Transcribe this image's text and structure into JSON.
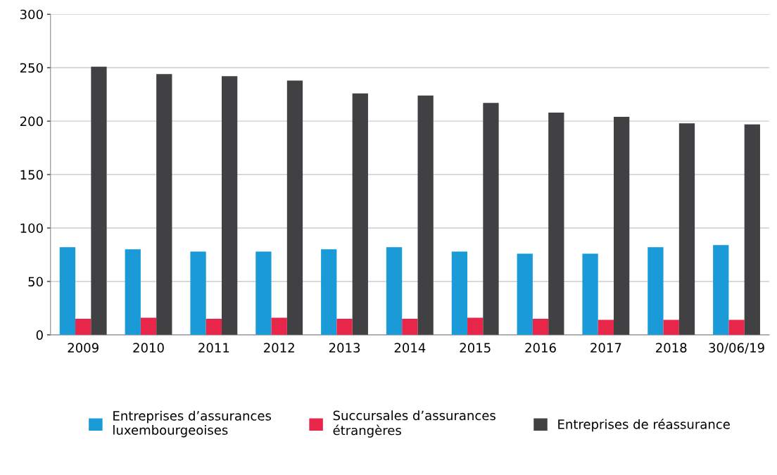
{
  "chart_data": {
    "type": "bar",
    "categories": [
      "2009",
      "2010",
      "2011",
      "2012",
      "2013",
      "2014",
      "2015",
      "2016",
      "2017",
      "2018",
      "30/06/19"
    ],
    "series": [
      {
        "name": "Entreprises d’assurances\nluxembourgeoises",
        "color": "#1a9bd7",
        "values": [
          82,
          80,
          78,
          78,
          80,
          82,
          78,
          76,
          76,
          82,
          84
        ]
      },
      {
        "name": "Succursales d’assurances\nétrangères",
        "color": "#e8264a",
        "values": [
          15,
          16,
          15,
          16,
          15,
          15,
          16,
          15,
          14,
          14,
          14
        ]
      },
      {
        "name": "Entreprises de réassurance",
        "color": "#414042",
        "values": [
          251,
          244,
          242,
          238,
          226,
          224,
          217,
          208,
          204,
          198,
          197
        ]
      }
    ],
    "ylim": [
      0,
      300
    ],
    "yticks": [
      0,
      50,
      100,
      150,
      200,
      250,
      300
    ],
    "grid": "y",
    "legend": "bottom"
  }
}
